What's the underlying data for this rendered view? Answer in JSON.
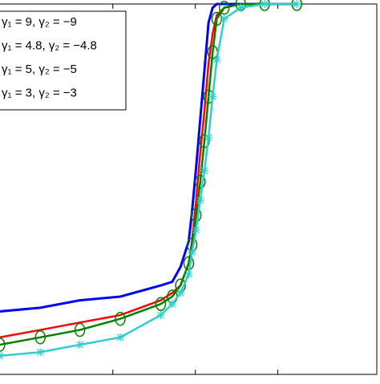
{
  "chart_data": {
    "type": "line",
    "x": [
      -0.37,
      0.12,
      0.6,
      1.09,
      1.58,
      1.72,
      1.82,
      1.92,
      1.96,
      2.01,
      2.06,
      2.11,
      2.16,
      2.21,
      2.26,
      2.35,
      2.55,
      2.84,
      3.23
    ],
    "series": [
      {
        "name": "γ₁ = 9, γ₂ = −9",
        "color": "#0000ff",
        "marker": null,
        "values": [
          0.17,
          0.18,
          0.2,
          0.21,
          0.24,
          0.25,
          0.29,
          0.36,
          0.44,
          0.56,
          0.69,
          0.82,
          0.95,
          0.99,
          1.0,
          1.0,
          1.0,
          1.0,
          1.0
        ]
      },
      {
        "name": "γ₁ = 4.8, γ₂ = −4.8",
        "color": "#ff0000",
        "marker": null,
        "values": [
          0.1,
          0.12,
          0.14,
          0.16,
          0.2,
          0.22,
          0.24,
          0.3,
          0.36,
          0.47,
          0.6,
          0.71,
          0.84,
          0.92,
          0.97,
          0.99,
          1.0,
          1.0,
          1.0
        ]
      },
      {
        "name": "γ₁ = 5, γ₂ = −5",
        "color": "#008000",
        "marker": "o",
        "values": [
          0.08,
          0.1,
          0.12,
          0.15,
          0.19,
          0.21,
          0.24,
          0.3,
          0.35,
          0.43,
          0.52,
          0.63,
          0.75,
          0.87,
          0.96,
          0.99,
          1.0,
          1.0,
          1.0
        ]
      },
      {
        "name": "γ₁ = 3, γ₂ = −3",
        "color": "#33cccc",
        "marker": "*",
        "values": [
          0.05,
          0.06,
          0.08,
          0.1,
          0.16,
          0.19,
          0.22,
          0.27,
          0.33,
          0.39,
          0.47,
          0.55,
          0.64,
          0.75,
          0.85,
          0.96,
          0.99,
          1.0,
          1.0
        ]
      }
    ],
    "xlim": [
      -1,
      4.2
    ],
    "xticks": [
      1,
      2,
      3
    ],
    "ylim": [
      0,
      1
    ]
  }
}
